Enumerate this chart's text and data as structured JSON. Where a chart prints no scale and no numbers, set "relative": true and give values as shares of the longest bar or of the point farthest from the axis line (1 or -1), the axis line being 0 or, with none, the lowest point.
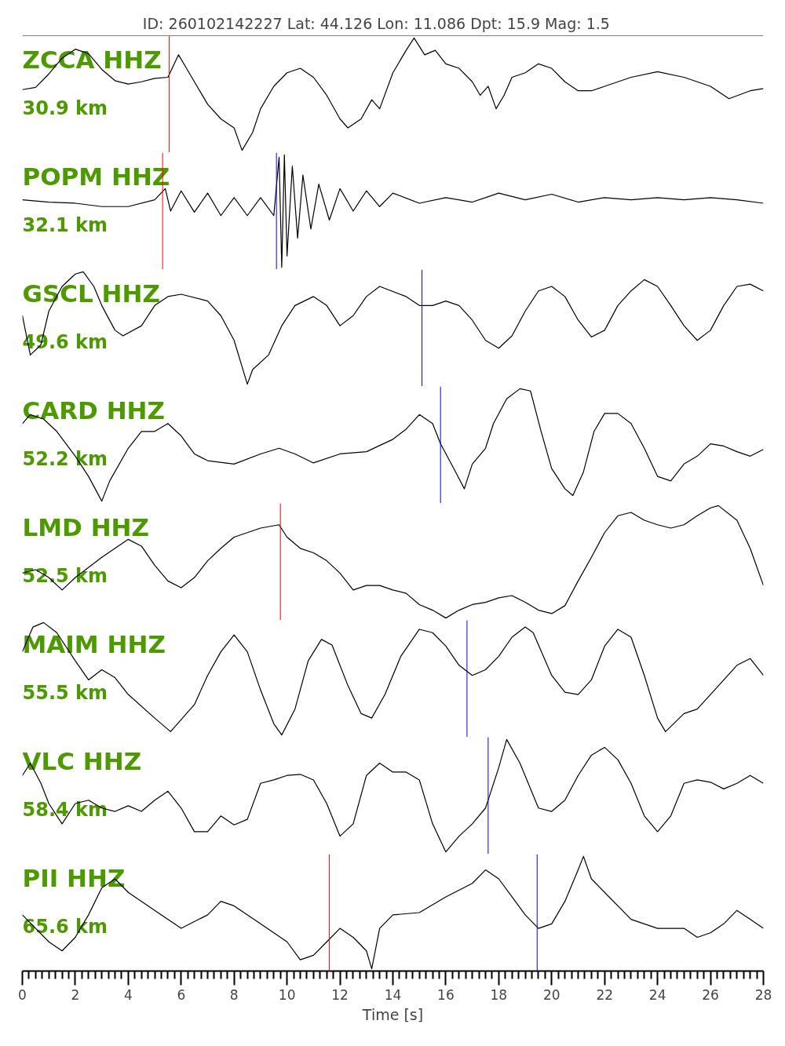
{
  "chart_data": [
    {
      "type": "line",
      "title": "ID: 260102142227 Lat:  44.126 Lon:  11.086 Dpt:    15.9 Mag:   1.5",
      "annotations": [
        "ZCCA HHZ",
        "30.9 km"
      ],
      "relative": true,
      "tick_labels": false,
      "xlim": [
        0,
        28
      ],
      "x": [
        0,
        0.5,
        1,
        1.5,
        2,
        2.5,
        3,
        3.5,
        4,
        4.5,
        5,
        5.5,
        5.9,
        6.2,
        6.5,
        7,
        7.5,
        8,
        8.3,
        8.7,
        9,
        9.5,
        10,
        10.5,
        11,
        11.5,
        12,
        12.3,
        12.8,
        13.2,
        13.5,
        14,
        14.5,
        14.8,
        15.2,
        15.6,
        16,
        16.5,
        17,
        17.3,
        17.6,
        17.9,
        18.2,
        18.5,
        19,
        19.5,
        20,
        20.5,
        21,
        21.5,
        22,
        23,
        24,
        25,
        26,
        26.7,
        27.5,
        28
      ],
      "series": [
        {
          "color": "#000000",
          "values": [
            0.54,
            0.56,
            0.68,
            0.82,
            0.9,
            0.86,
            0.72,
            0.62,
            0.59,
            0.61,
            0.64,
            0.65,
            0.85,
            0.73,
            0.61,
            0.41,
            0.28,
            0.2,
            0,
            0.16,
            0.37,
            0.57,
            0.69,
            0.73,
            0.65,
            0.49,
            0.28,
            0.2,
            0.28,
            0.45,
            0.37,
            0.69,
            0.89,
            1,
            0.85,
            0.89,
            0.77,
            0.73,
            0.61,
            0.49,
            0.57,
            0.37,
            0.49,
            0.65,
            0.69,
            0.77,
            0.73,
            0.61,
            0.53,
            0.53,
            0.57,
            0.65,
            0.7,
            0.65,
            0.57,
            0.46,
            0.53,
            0.55
          ]
        }
      ],
      "ref_lines": [
        {
          "axis": "x",
          "value": 5.55,
          "color": "#ff0000"
        }
      ]
    },
    {
      "type": "line",
      "annotations": [
        "POPM HHZ",
        "32.1 km"
      ],
      "relative": true,
      "tick_labels": false,
      "xlim": [
        0,
        28
      ],
      "x": [
        0,
        1,
        2,
        3,
        4,
        5,
        5.4,
        5.6,
        6,
        6.5,
        7,
        7.5,
        8,
        8.5,
        9,
        9.5,
        9.7,
        9.8,
        9.9,
        10,
        10.2,
        10.4,
        10.6,
        10.9,
        11.2,
        11.6,
        12,
        12.5,
        13,
        13.5,
        14,
        15,
        16,
        17,
        18,
        19,
        20,
        21,
        22,
        23,
        24,
        25,
        26,
        27,
        28
      ],
      "series": [
        {
          "color": "#000000",
          "values": [
            0.6,
            0.58,
            0.57,
            0.54,
            0.54,
            0.6,
            0.7,
            0.5,
            0.68,
            0.49,
            0.66,
            0.46,
            0.62,
            0.46,
            0.62,
            0.46,
            0.98,
            0,
            1,
            0.1,
            0.9,
            0.26,
            0.82,
            0.34,
            0.74,
            0.42,
            0.7,
            0.5,
            0.68,
            0.54,
            0.66,
            0.57,
            0.62,
            0.58,
            0.66,
            0.6,
            0.65,
            0.58,
            0.62,
            0.6,
            0.62,
            0.6,
            0.62,
            0.6,
            0.57
          ]
        }
      ],
      "ref_lines": [
        {
          "axis": "x",
          "value": 5.3,
          "color": "#ff0000"
        },
        {
          "axis": "x",
          "value": 9.6,
          "color": "#0000ff"
        }
      ]
    },
    {
      "type": "line",
      "annotations": [
        "GSCL HHZ",
        "49.6 km"
      ],
      "relative": true,
      "tick_labels": false,
      "xlim": [
        0,
        28
      ],
      "x": [
        0,
        0.3,
        0.7,
        1,
        1.5,
        2,
        2.3,
        2.7,
        3,
        3.5,
        3.8,
        4.5,
        5,
        5.5,
        6,
        7,
        7.5,
        8,
        8.5,
        8.7,
        9.3,
        9.8,
        10.3,
        11,
        11.5,
        12,
        12.5,
        13,
        13.5,
        14.5,
        15,
        15.5,
        16,
        16.5,
        17,
        17.5,
        18,
        18.5,
        19,
        19.5,
        20,
        20.5,
        21,
        21.5,
        22,
        22.5,
        23,
        23.5,
        24,
        24.5,
        25,
        25.5,
        26,
        26.5,
        27,
        27.5,
        28
      ],
      "series": [
        {
          "color": "#000000",
          "values": [
            0.61,
            0.26,
            0.35,
            0.65,
            0.87,
            0.98,
            1,
            0.87,
            0.7,
            0.48,
            0.43,
            0.52,
            0.7,
            0.78,
            0.8,
            0.74,
            0.61,
            0.39,
            0,
            0.13,
            0.26,
            0.52,
            0.7,
            0.78,
            0.7,
            0.52,
            0.61,
            0.78,
            0.87,
            0.78,
            0.7,
            0.7,
            0.74,
            0.7,
            0.57,
            0.39,
            0.32,
            0.43,
            0.65,
            0.83,
            0.87,
            0.78,
            0.57,
            0.42,
            0.48,
            0.7,
            0.83,
            0.93,
            0.87,
            0.7,
            0.52,
            0.39,
            0.48,
            0.7,
            0.87,
            0.89,
            0.83
          ]
        }
      ],
      "ref_lines": [
        {
          "axis": "x",
          "value": 15.1,
          "color": "#0000ff"
        }
      ]
    },
    {
      "type": "line",
      "annotations": [
        "CARD HHZ",
        "52.2 km"
      ],
      "relative": true,
      "tick_labels": false,
      "xlim": [
        0,
        28
      ],
      "x": [
        0,
        0.3,
        0.8,
        1.3,
        2,
        2.5,
        3,
        3.3,
        4,
        4.5,
        5,
        5.5,
        6,
        6.5,
        7,
        8,
        9,
        9.7,
        10.3,
        11,
        12,
        13,
        14,
        14.5,
        15,
        15.5,
        15.8,
        16.3,
        16.7,
        17,
        17.5,
        17.8,
        18.3,
        18.8,
        19.2,
        19.6,
        20,
        20.5,
        20.8,
        21.2,
        21.6,
        22,
        22.5,
        23,
        23.5,
        24,
        24.5,
        25,
        25.5,
        26,
        26.5,
        27,
        27.5,
        28
      ],
      "series": [
        {
          "color": "#000000",
          "values": [
            0.69,
            0.77,
            0.73,
            0.62,
            0.4,
            0.22,
            0,
            0.18,
            0.47,
            0.62,
            0.62,
            0.69,
            0.58,
            0.42,
            0.36,
            0.33,
            0.42,
            0.47,
            0.42,
            0.34,
            0.42,
            0.44,
            0.55,
            0.64,
            0.77,
            0.69,
            0.51,
            0.29,
            0.11,
            0.33,
            0.47,
            0.69,
            0.91,
            1,
            0.98,
            0.62,
            0.29,
            0.11,
            0.05,
            0.26,
            0.62,
            0.78,
            0.78,
            0.69,
            0.47,
            0.22,
            0.18,
            0.33,
            0.4,
            0.51,
            0.49,
            0.44,
            0.4,
            0.46
          ]
        }
      ],
      "ref_lines": [
        {
          "axis": "x",
          "value": 15.8,
          "color": "#0000ff"
        }
      ]
    },
    {
      "type": "line",
      "annotations": [
        "LMD HHZ",
        "52.5 km"
      ],
      "relative": true,
      "tick_labels": false,
      "xlim": [
        0,
        28
      ],
      "x": [
        0,
        0.5,
        1,
        1.5,
        2,
        3,
        3.5,
        4,
        4.5,
        5,
        5.5,
        6,
        6.5,
        7,
        7.5,
        8,
        9,
        9.7,
        10,
        10.5,
        11,
        11.5,
        12,
        12.5,
        13,
        13.5,
        14,
        14.5,
        15,
        15.5,
        16,
        16.5,
        17,
        17.5,
        18,
        18.5,
        19,
        19.5,
        20,
        20.5,
        21,
        21.5,
        22,
        22.5,
        23,
        23.5,
        24,
        24.5,
        25,
        25.5,
        26,
        26.3,
        27,
        27.5,
        28
      ],
      "series": [
        {
          "color": "#000000",
          "values": [
            0.4,
            0.43,
            0.36,
            0.25,
            0.36,
            0.54,
            0.62,
            0.7,
            0.64,
            0.47,
            0.33,
            0.27,
            0.36,
            0.51,
            0.62,
            0.72,
            0.8,
            0.83,
            0.72,
            0.62,
            0.58,
            0.51,
            0.4,
            0.25,
            0.29,
            0.29,
            0.25,
            0.22,
            0.12,
            0.07,
            0,
            0.07,
            0.12,
            0.14,
            0.18,
            0.2,
            0.14,
            0.07,
            0.04,
            0.11,
            0.33,
            0.54,
            0.76,
            0.91,
            0.94,
            0.87,
            0.83,
            0.8,
            0.83,
            0.91,
            0.98,
            1,
            0.87,
            0.62,
            0.29
          ]
        }
      ],
      "ref_lines": [
        {
          "axis": "x",
          "value": 9.75,
          "color": "#ff0000"
        }
      ]
    },
    {
      "type": "line",
      "annotations": [
        "MAIM HHZ",
        "55.5 km"
      ],
      "relative": true,
      "tick_labels": false,
      "xlim": [
        0,
        28
      ],
      "x": [
        0,
        0.4,
        0.8,
        1.3,
        2,
        2.5,
        3,
        3.5,
        4,
        5,
        5.6,
        6.5,
        7,
        7.5,
        8,
        8.5,
        9,
        9.5,
        9.8,
        10.3,
        10.8,
        11.3,
        11.7,
        12.3,
        12.8,
        13.2,
        13.7,
        14.3,
        15,
        15.5,
        16,
        16.5,
        17,
        17.5,
        18,
        18.5,
        19,
        19.3,
        20,
        20.5,
        21,
        21.5,
        22,
        22.5,
        23,
        23.5,
        24,
        24.3,
        25,
        25.5,
        26,
        27,
        27.5,
        28
      ],
      "series": [
        {
          "color": "#000000",
          "values": [
            0.74,
            0.96,
            1,
            0.91,
            0.66,
            0.49,
            0.58,
            0.51,
            0.36,
            0.15,
            0.03,
            0.27,
            0.53,
            0.74,
            0.89,
            0.74,
            0.4,
            0.1,
            0,
            0.23,
            0.66,
            0.85,
            0.8,
            0.44,
            0.19,
            0.15,
            0.36,
            0.7,
            0.94,
            0.91,
            0.79,
            0.62,
            0.53,
            0.58,
            0.7,
            0.87,
            0.96,
            0.91,
            0.53,
            0.38,
            0.36,
            0.49,
            0.79,
            0.94,
            0.87,
            0.53,
            0.15,
            0.03,
            0.19,
            0.23,
            0.36,
            0.62,
            0.68,
            0.53
          ]
        }
      ],
      "ref_lines": [
        {
          "axis": "x",
          "value": 16.8,
          "color": "#0000ff"
        }
      ]
    },
    {
      "type": "line",
      "annotations": [
        "VLC HHZ",
        "58.4 km"
      ],
      "relative": true,
      "tick_labels": false,
      "xlim": [
        0,
        28
      ],
      "x": [
        0,
        0.3,
        0.7,
        1,
        1.5,
        2,
        2.5,
        3,
        3.5,
        4,
        4.5,
        5,
        5.5,
        6,
        6.5,
        7,
        7.5,
        8,
        8.5,
        9,
        9.5,
        10,
        10.5,
        11,
        11.5,
        12,
        12.5,
        13,
        13.5,
        14,
        14.5,
        15,
        15.5,
        16,
        16.5,
        17,
        17.5,
        18,
        18.3,
        18.8,
        19.5,
        20,
        20.5,
        21,
        21.5,
        22,
        22.5,
        23,
        23.5,
        24,
        24.5,
        25,
        25.5,
        26,
        26.5,
        27,
        27.5,
        28
      ],
      "series": [
        {
          "color": "#000000",
          "values": [
            0.68,
            0.79,
            0.61,
            0.43,
            0.25,
            0.43,
            0.46,
            0.39,
            0.36,
            0.41,
            0.36,
            0.46,
            0.54,
            0.39,
            0.18,
            0.18,
            0.32,
            0.24,
            0.29,
            0.61,
            0.64,
            0.68,
            0.69,
            0.64,
            0.43,
            0.14,
            0.25,
            0.68,
            0.79,
            0.71,
            0.71,
            0.64,
            0.25,
            0,
            0.14,
            0.25,
            0.39,
            0.75,
            1,
            0.79,
            0.39,
            0.36,
            0.46,
            0.68,
            0.86,
            0.93,
            0.82,
            0.61,
            0.32,
            0.18,
            0.32,
            0.61,
            0.64,
            0.62,
            0.56,
            0.61,
            0.68,
            0.61
          ]
        }
      ],
      "ref_lines": [
        {
          "axis": "x",
          "value": 17.6,
          "color": "#0000ff"
        }
      ]
    },
    {
      "type": "line",
      "annotations": [
        "PII HHZ",
        "65.6 km"
      ],
      "relative": true,
      "tick_labels": "x",
      "xlim": [
        0,
        28
      ],
      "xlabel": "Time [s]",
      "xticks": [
        0,
        {
          "value": 0.25,
          "label": null
        },
        {
          "value": 0.5,
          "label": null
        },
        {
          "value": 0.75,
          "label": null
        },
        {
          "value": 1,
          "label": null
        },
        {
          "value": 1.25,
          "label": null
        },
        {
          "value": 1.5,
          "label": null
        },
        {
          "value": 1.75,
          "label": null
        },
        2,
        {
          "value": 2.25,
          "label": null
        },
        {
          "value": 2.5,
          "label": null
        },
        {
          "value": 2.75,
          "label": null
        },
        {
          "value": 3,
          "label": null
        },
        {
          "value": 3.25,
          "label": null
        },
        {
          "value": 3.5,
          "label": null
        },
        {
          "value": 3.75,
          "label": null
        },
        4,
        {
          "value": 4.25,
          "label": null
        },
        {
          "value": 4.5,
          "label": null
        },
        {
          "value": 4.75,
          "label": null
        },
        {
          "value": 5,
          "label": null
        },
        {
          "value": 5.25,
          "label": null
        },
        {
          "value": 5.5,
          "label": null
        },
        {
          "value": 5.75,
          "label": null
        },
        6,
        {
          "value": 6.25,
          "label": null
        },
        {
          "value": 6.5,
          "label": null
        },
        {
          "value": 6.75,
          "label": null
        },
        {
          "value": 7,
          "label": null
        },
        {
          "value": 7.25,
          "label": null
        },
        {
          "value": 7.5,
          "label": null
        },
        {
          "value": 7.75,
          "label": null
        },
        8,
        {
          "value": 8.25,
          "label": null
        },
        {
          "value": 8.5,
          "label": null
        },
        {
          "value": 8.75,
          "label": null
        },
        {
          "value": 9,
          "label": null
        },
        {
          "value": 9.25,
          "label": null
        },
        {
          "value": 9.5,
          "label": null
        },
        {
          "value": 9.75,
          "label": null
        },
        10,
        {
          "value": 10.25,
          "label": null
        },
        {
          "value": 10.5,
          "label": null
        },
        {
          "value": 10.75,
          "label": null
        },
        {
          "value": 11,
          "label": null
        },
        {
          "value": 11.25,
          "label": null
        },
        {
          "value": 11.5,
          "label": null
        },
        {
          "value": 11.75,
          "label": null
        },
        12,
        {
          "value": 12.25,
          "label": null
        },
        {
          "value": 12.5,
          "label": null
        },
        {
          "value": 12.75,
          "label": null
        },
        {
          "value": 13,
          "label": null
        },
        {
          "value": 13.25,
          "label": null
        },
        {
          "value": 13.5,
          "label": null
        },
        {
          "value": 13.75,
          "label": null
        },
        14,
        {
          "value": 14.25,
          "label": null
        },
        {
          "value": 14.5,
          "label": null
        },
        {
          "value": 14.75,
          "label": null
        },
        {
          "value": 15,
          "label": null
        },
        {
          "value": 15.25,
          "label": null
        },
        {
          "value": 15.5,
          "label": null
        },
        {
          "value": 15.75,
          "label": null
        },
        16,
        {
          "value": 16.25,
          "label": null
        },
        {
          "value": 16.5,
          "label": null
        },
        {
          "value": 16.75,
          "label": null
        },
        {
          "value": 17,
          "label": null
        },
        {
          "value": 17.25,
          "label": null
        },
        {
          "value": 17.5,
          "label": null
        },
        {
          "value": 17.75,
          "label": null
        },
        18,
        {
          "value": 18.25,
          "label": null
        },
        {
          "value": 18.5,
          "label": null
        },
        {
          "value": 18.75,
          "label": null
        },
        {
          "value": 19,
          "label": null
        },
        {
          "value": 19.25,
          "label": null
        },
        {
          "value": 19.5,
          "label": null
        },
        {
          "value": 19.75,
          "label": null
        },
        20,
        {
          "value": 20.25,
          "label": null
        },
        {
          "value": 20.5,
          "label": null
        },
        {
          "value": 20.75,
          "label": null
        },
        {
          "value": 21,
          "label": null
        },
        {
          "value": 21.25,
          "label": null
        },
        {
          "value": 21.5,
          "label": null
        },
        {
          "value": 21.75,
          "label": null
        },
        22,
        {
          "value": 22.25,
          "label": null
        },
        {
          "value": 22.5,
          "label": null
        },
        {
          "value": 22.75,
          "label": null
        },
        {
          "value": 23,
          "label": null
        },
        {
          "value": 23.25,
          "label": null
        },
        {
          "value": 23.5,
          "label": null
        },
        {
          "value": 23.75,
          "label": null
        },
        24,
        {
          "value": 24.25,
          "label": null
        },
        {
          "value": 24.5,
          "label": null
        },
        {
          "value": 24.75,
          "label": null
        },
        {
          "value": 25,
          "label": null
        },
        {
          "value": 25.25,
          "label": null
        },
        {
          "value": 25.5,
          "label": null
        },
        {
          "value": 25.75,
          "label": null
        },
        26,
        {
          "value": 26.25,
          "label": null
        },
        {
          "value": 26.5,
          "label": null
        },
        {
          "value": 26.75,
          "label": null
        },
        {
          "value": 27,
          "label": null
        },
        {
          "value": 27.25,
          "label": null
        },
        {
          "value": 27.5,
          "label": null
        },
        {
          "value": 27.75,
          "label": null
        },
        28
      ],
      "x": [
        0,
        0.5,
        1,
        1.5,
        2,
        2.5,
        3,
        3.5,
        4,
        5,
        6,
        7,
        7.5,
        8,
        9,
        10,
        10.5,
        11,
        11.5,
        12,
        12.5,
        13,
        13.2,
        13.5,
        14,
        15,
        16,
        17,
        17.5,
        18,
        18.5,
        19,
        19.5,
        20,
        20.5,
        21,
        21.2,
        21.5,
        22,
        22.5,
        23,
        23.5,
        24,
        25,
        25.5,
        26,
        26.5,
        27,
        27.5,
        28
      ],
      "series": [
        {
          "color": "#000000",
          "values": [
            0.48,
            0.36,
            0.24,
            0.16,
            0.28,
            0.48,
            0.72,
            0.8,
            0.68,
            0.52,
            0.36,
            0.48,
            0.6,
            0.56,
            0.4,
            0.24,
            0.08,
            0.12,
            0.24,
            0.36,
            0.28,
            0.16,
            0,
            0.36,
            0.48,
            0.5,
            0.64,
            0.76,
            0.88,
            0.8,
            0.64,
            0.48,
            0.36,
            0.4,
            0.6,
            0.88,
            1,
            0.8,
            0.68,
            0.56,
            0.44,
            0.4,
            0.36,
            0.36,
            0.28,
            0.32,
            0.4,
            0.52,
            0.44,
            0.36
          ]
        }
      ],
      "ref_lines": [
        {
          "axis": "x",
          "value": 11.6,
          "color": "#ff0000"
        },
        {
          "axis": "x",
          "value": 19.45,
          "color": "#0000ff"
        }
      ]
    }
  ]
}
